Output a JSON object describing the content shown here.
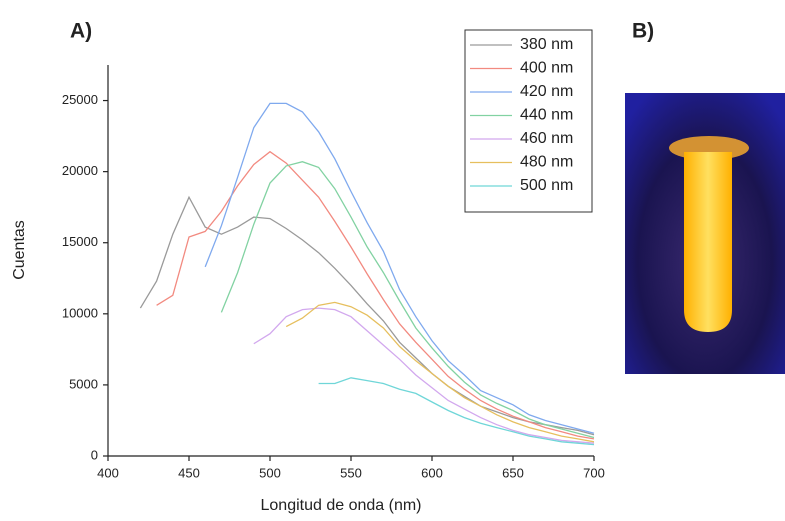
{
  "panel_labels": [
    "A)",
    "B)"
  ],
  "chart_data": {
    "type": "line",
    "x_label": "Longitud de onda (nm)",
    "y_label": "Cuentas",
    "xlim": [
      400,
      700
    ],
    "xticks": [
      400,
      450,
      500,
      550,
      600,
      650,
      700
    ],
    "ylim": [
      0,
      27500
    ],
    "yticks": [
      0,
      5000,
      10000,
      15000,
      20000,
      25000
    ],
    "legend": "upper right",
    "series": [
      {
        "name": "380 nm",
        "color": "#9a9a9a",
        "x": [
          420,
          430,
          440,
          450,
          460,
          470,
          480,
          490,
          500,
          510,
          520,
          530,
          540,
          550,
          560,
          570,
          580,
          590,
          600,
          610,
          620,
          630,
          640,
          650,
          660,
          670,
          680,
          690,
          700
        ],
        "values": [
          10400,
          12300,
          15600,
          18200,
          16100,
          15600,
          16100,
          16800,
          16700,
          16000,
          15200,
          14300,
          13200,
          12000,
          10700,
          9500,
          8000,
          6900,
          5800,
          4900,
          4200,
          3500,
          3100,
          2700,
          2400,
          2200,
          2000,
          1800,
          1500
        ]
      },
      {
        "name": "400 nm",
        "color": "#f28a80",
        "x": [
          430,
          440,
          450,
          460,
          470,
          480,
          490,
          500,
          510,
          520,
          530,
          540,
          550,
          560,
          570,
          580,
          590,
          600,
          610,
          620,
          630,
          640,
          650,
          660,
          670,
          680,
          690,
          700
        ],
        "values": [
          10600,
          11300,
          15400,
          15800,
          17200,
          19000,
          20500,
          21400,
          20600,
          19400,
          18200,
          16500,
          14700,
          12800,
          11000,
          9300,
          8000,
          6800,
          5600,
          4700,
          3900,
          3300,
          2800,
          2400,
          2000,
          1700,
          1400,
          1200
        ]
      },
      {
        "name": "420 nm",
        "color": "#7fa9ee",
        "x": [
          460,
          470,
          480,
          490,
          500,
          510,
          520,
          530,
          540,
          550,
          560,
          570,
          580,
          590,
          600,
          610,
          620,
          630,
          640,
          650,
          660,
          670,
          680,
          690,
          700
        ],
        "values": [
          13300,
          16200,
          19600,
          23100,
          24800,
          24800,
          24200,
          22800,
          20900,
          18600,
          16400,
          14400,
          11700,
          9800,
          8100,
          6700,
          5700,
          4600,
          4100,
          3600,
          2900,
          2500,
          2200,
          1900,
          1600
        ]
      },
      {
        "name": "440 nm",
        "color": "#82d2a2",
        "x": [
          470,
          480,
          490,
          500,
          510,
          520,
          530,
          540,
          550,
          560,
          570,
          580,
          590,
          600,
          610,
          620,
          630,
          640,
          650,
          660,
          670,
          680,
          690,
          700
        ],
        "values": [
          10100,
          12900,
          16300,
          19200,
          20400,
          20700,
          20300,
          18800,
          16800,
          14700,
          12900,
          10900,
          9000,
          7600,
          6300,
          5200,
          4300,
          3700,
          3200,
          2600,
          2200,
          1900,
          1600,
          1300
        ]
      },
      {
        "name": "460 nm",
        "color": "#d2a8ee",
        "x": [
          490,
          500,
          510,
          520,
          530,
          540,
          550,
          560,
          570,
          580,
          590,
          600,
          610,
          620,
          630,
          640,
          650,
          660,
          670,
          680,
          690,
          700
        ],
        "values": [
          7900,
          8600,
          9800,
          10300,
          10400,
          10300,
          9800,
          8800,
          7800,
          6800,
          5700,
          4800,
          3900,
          3300,
          2700,
          2200,
          1800,
          1500,
          1300,
          1100,
          1000,
          900
        ]
      },
      {
        "name": "480 nm",
        "color": "#e6bf5e",
        "x": [
          510,
          520,
          530,
          540,
          550,
          560,
          570,
          580,
          590,
          600,
          610,
          620,
          630,
          640,
          650,
          660,
          670,
          680,
          690,
          700
        ],
        "values": [
          9100,
          9700,
          10600,
          10800,
          10500,
          9900,
          9000,
          7700,
          6700,
          5800,
          4900,
          4100,
          3500,
          2900,
          2400,
          2000,
          1700,
          1400,
          1200,
          1000
        ]
      },
      {
        "name": "500 nm",
        "color": "#6fd6d8",
        "x": [
          530,
          540,
          550,
          560,
          570,
          580,
          590,
          600,
          610,
          620,
          630,
          640,
          650,
          660,
          670,
          680,
          690,
          700
        ],
        "values": [
          5100,
          5100,
          5500,
          5300,
          5100,
          4700,
          4400,
          3800,
          3200,
          2700,
          2300,
          2000,
          1700,
          1400,
          1200,
          1000,
          900,
          800
        ]
      }
    ]
  }
}
